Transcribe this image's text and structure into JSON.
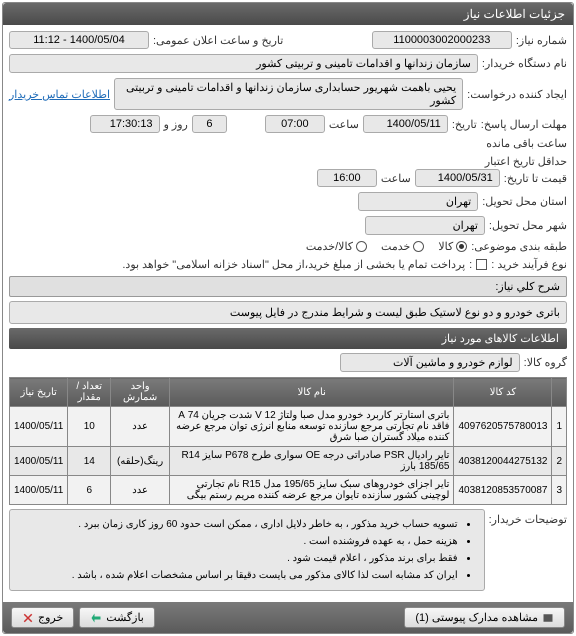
{
  "header": "جزئیات اطلاعات نیاز",
  "form": {
    "need_no_lbl": "شماره نیاز:",
    "need_no": "1100003002000233",
    "ann_date_lbl": "تاریخ و ساعت اعلان عمومی:",
    "ann_date": "1400/05/04 - 11:12",
    "buyer_lbl": "نام دستگاه خریدار:",
    "buyer": "سازمان زندانها و اقدامات تامینی و تربیتی کشور",
    "creator_lbl": "ایجاد کننده درخواست:",
    "creator": "یحیی باهمت شهریور حسابداری سازمان زندانها و اقدامات تامینی و تربیتی کشور",
    "contact_link": "اطلاعات تماس خریدار",
    "deadline_lbl": "مهلت ارسال پاسخ:",
    "deadline_lbl2": "تاریخ:",
    "deadline_date": "1400/05/11",
    "time_lbl": "ساعت",
    "deadline_time": "07:00",
    "days": "6",
    "days_lbl": "روز و",
    "remain_time": "17:30:13",
    "remain_lbl": "ساعت باقی مانده",
    "valid_lbl": "حداقل تاریخ اعتبار",
    "valid_lbl2": "قیمت تا تاریخ:",
    "valid_date": "1400/05/31",
    "valid_time": "16:00",
    "loc_lbl": "استان محل تحویل:",
    "loc_prov": "تهران",
    "loc_city_lbl": "شهر محل تحویل:",
    "loc_city": "تهران",
    "cat_lbl": "طبقه بندی موضوعی:",
    "cat_goods": "کالا",
    "cat_service": "خدمت",
    "cat_both": "کالا/خدمت",
    "proc_lbl": "نوع فرآیند خرید :",
    "proc_note_lbl": ":",
    "proc_note": "پرداخت تمام یا بخشی از مبلغ خرید،از محل \"اسناد خزانه اسلامی\" خواهد بود.",
    "desc_bar": "شرح کلي نياز:",
    "desc": "باتری خودرو و دو نوع لاستیک طبق  لیست و شرایط مندرج در فایل پیوست"
  },
  "items_title": "اطلاعات كالاهای مورد نياز",
  "group_lbl": "گروه کالا:",
  "group": "لوازم خودرو و ماشین آلات",
  "table": {
    "cols": [
      "",
      "کد کالا",
      "نام کالا",
      "واحد شمارش",
      "تعداد / مقدار",
      "تاریخ نیاز"
    ],
    "rows": [
      [
        "1",
        "4097620575780013",
        "باتری استارتر کاربرد خودرو مدل صبا ولتاژ 12 V شدت جریان 74 A فاقد نام تجارتی مرجع سازنده توسعه منابع انرژی توان مرجع عرضه کننده میلاد گستران صبا شرق",
        "عدد",
        "10",
        "1400/05/11"
      ],
      [
        "2",
        "4038120044275132",
        "تایر رادیال PSR صادراتی درجه OE سواری طرح P678 سایز R14 185/65 بارز",
        "رینگ(حلقه)",
        "14",
        "1400/05/11"
      ],
      [
        "3",
        "4038120853570087",
        "تایر اجزای خودروهای سبک سایز 195/65 مدل R15 نام تجارتی لوچینی کشور سازنده تایوان مرجع عرضه کننده مریم رستم بیگی",
        "عدد",
        "6",
        "1400/05/11"
      ]
    ]
  },
  "buyer_notes_lbl": "توضیحات خریدار:",
  "buyer_notes": [
    "تسویه حساب خرید مذکور ، به خاطر دلایل اداری ، ممکن است حدود  60 روز کاری زمان ببرد .",
    "هزینه حمل ، به عهده فروشنده است .",
    "فقط برای برند مذکور ، اعلام قیمت شود .",
    "ایران کد مشابه  است لذا کالای مذکور می بایست دقیقا بر اساس مشخصات اعلام شده ، باشد ."
  ],
  "footer": {
    "attach": "مشاهده مدارک پیوستی (1)",
    "back": "بازگشت",
    "exit": "خروج"
  }
}
